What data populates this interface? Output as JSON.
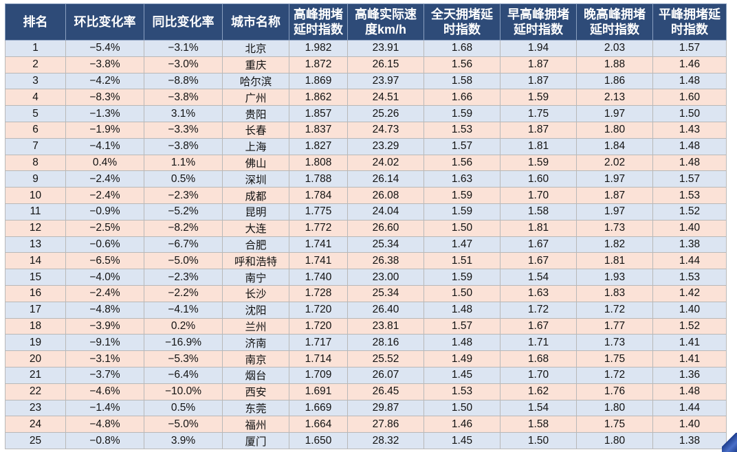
{
  "table": {
    "headers": [
      "排名",
      "环比变化率",
      "同比变化率",
      "城市名称",
      "高峰拥堵\n延时指数",
      "高峰实际速\n度km/h",
      "全天拥堵延\n时指数",
      "早高峰拥堵\n延时指数",
      "晚高峰拥堵\n延时指数",
      "平峰拥堵延\n时指数"
    ],
    "rows": [
      [
        "1",
        "−5.4%",
        "−3.1%",
        "北京",
        "1.982",
        "23.91",
        "1.68",
        "1.94",
        "2.03",
        "1.57"
      ],
      [
        "2",
        "−3.8%",
        "−3.0%",
        "重庆",
        "1.872",
        "26.15",
        "1.56",
        "1.87",
        "1.88",
        "1.46"
      ],
      [
        "3",
        "−4.2%",
        "−8.8%",
        "哈尔滨",
        "1.869",
        "23.97",
        "1.58",
        "1.87",
        "1.86",
        "1.48"
      ],
      [
        "4",
        "−8.3%",
        "−3.8%",
        "广州",
        "1.862",
        "24.51",
        "1.66",
        "1.59",
        "2.13",
        "1.60"
      ],
      [
        "5",
        "−1.3%",
        "3.1%",
        "贵阳",
        "1.857",
        "25.26",
        "1.59",
        "1.75",
        "1.97",
        "1.50"
      ],
      [
        "6",
        "−1.9%",
        "−3.3%",
        "长春",
        "1.837",
        "24.73",
        "1.53",
        "1.87",
        "1.80",
        "1.43"
      ],
      [
        "7",
        "−4.1%",
        "−3.8%",
        "上海",
        "1.827",
        "23.29",
        "1.57",
        "1.81",
        "1.84",
        "1.48"
      ],
      [
        "8",
        "0.4%",
        "1.1%",
        "佛山",
        "1.808",
        "24.02",
        "1.56",
        "1.59",
        "2.02",
        "1.48"
      ],
      [
        "9",
        "−2.4%",
        "0.5%",
        "深圳",
        "1.788",
        "26.14",
        "1.63",
        "1.60",
        "1.97",
        "1.57"
      ],
      [
        "10",
        "−2.4%",
        "−2.3%",
        "成都",
        "1.784",
        "26.08",
        "1.59",
        "1.70",
        "1.87",
        "1.53"
      ],
      [
        "11",
        "−0.9%",
        "−5.2%",
        "昆明",
        "1.775",
        "24.04",
        "1.59",
        "1.58",
        "1.97",
        "1.52"
      ],
      [
        "12",
        "−2.5%",
        "−8.2%",
        "大连",
        "1.772",
        "26.60",
        "1.50",
        "1.81",
        "1.73",
        "1.40"
      ],
      [
        "13",
        "−0.6%",
        "−6.7%",
        "合肥",
        "1.741",
        "25.34",
        "1.47",
        "1.67",
        "1.82",
        "1.38"
      ],
      [
        "14",
        "−6.5%",
        "−5.0%",
        "呼和浩特",
        "1.741",
        "26.38",
        "1.51",
        "1.67",
        "1.81",
        "1.44"
      ],
      [
        "15",
        "−4.0%",
        "−2.3%",
        "南宁",
        "1.740",
        "23.00",
        "1.59",
        "1.54",
        "1.93",
        "1.53"
      ],
      [
        "16",
        "−2.4%",
        "−2.2%",
        "长沙",
        "1.728",
        "25.34",
        "1.50",
        "1.63",
        "1.83",
        "1.42"
      ],
      [
        "17",
        "−4.8%",
        "−4.1%",
        "沈阳",
        "1.720",
        "26.40",
        "1.48",
        "1.72",
        "1.72",
        "1.40"
      ],
      [
        "18",
        "−3.9%",
        "0.2%",
        "兰州",
        "1.720",
        "23.81",
        "1.57",
        "1.67",
        "1.77",
        "1.52"
      ],
      [
        "19",
        "−9.1%",
        "−16.9%",
        "济南",
        "1.717",
        "28.16",
        "1.48",
        "1.71",
        "1.73",
        "1.41"
      ],
      [
        "20",
        "−3.1%",
        "−5.3%",
        "南京",
        "1.714",
        "25.52",
        "1.49",
        "1.68",
        "1.75",
        "1.41"
      ],
      [
        "21",
        "−3.7%",
        "−6.4%",
        "烟台",
        "1.709",
        "26.07",
        "1.45",
        "1.70",
        "1.72",
        "1.36"
      ],
      [
        "22",
        "−4.6%",
        "−10.0%",
        "西安",
        "1.691",
        "26.45",
        "1.53",
        "1.62",
        "1.76",
        "1.48"
      ],
      [
        "23",
        "−1.4%",
        "0.5%",
        "东莞",
        "1.669",
        "29.87",
        "1.50",
        "1.54",
        "1.80",
        "1.44"
      ],
      [
        "24",
        "−4.8%",
        "−5.0%",
        "福州",
        "1.664",
        "27.86",
        "1.46",
        "1.58",
        "1.75",
        "1.40"
      ],
      [
        "25",
        "−0.8%",
        "3.9%",
        "厦门",
        "1.650",
        "28.32",
        "1.45",
        "1.50",
        "1.80",
        "1.38"
      ]
    ]
  },
  "colors": {
    "header_bg": "#2e4b78",
    "row_odd_bg": "#dce5f2",
    "row_even_bg": "#fbe2d7"
  }
}
